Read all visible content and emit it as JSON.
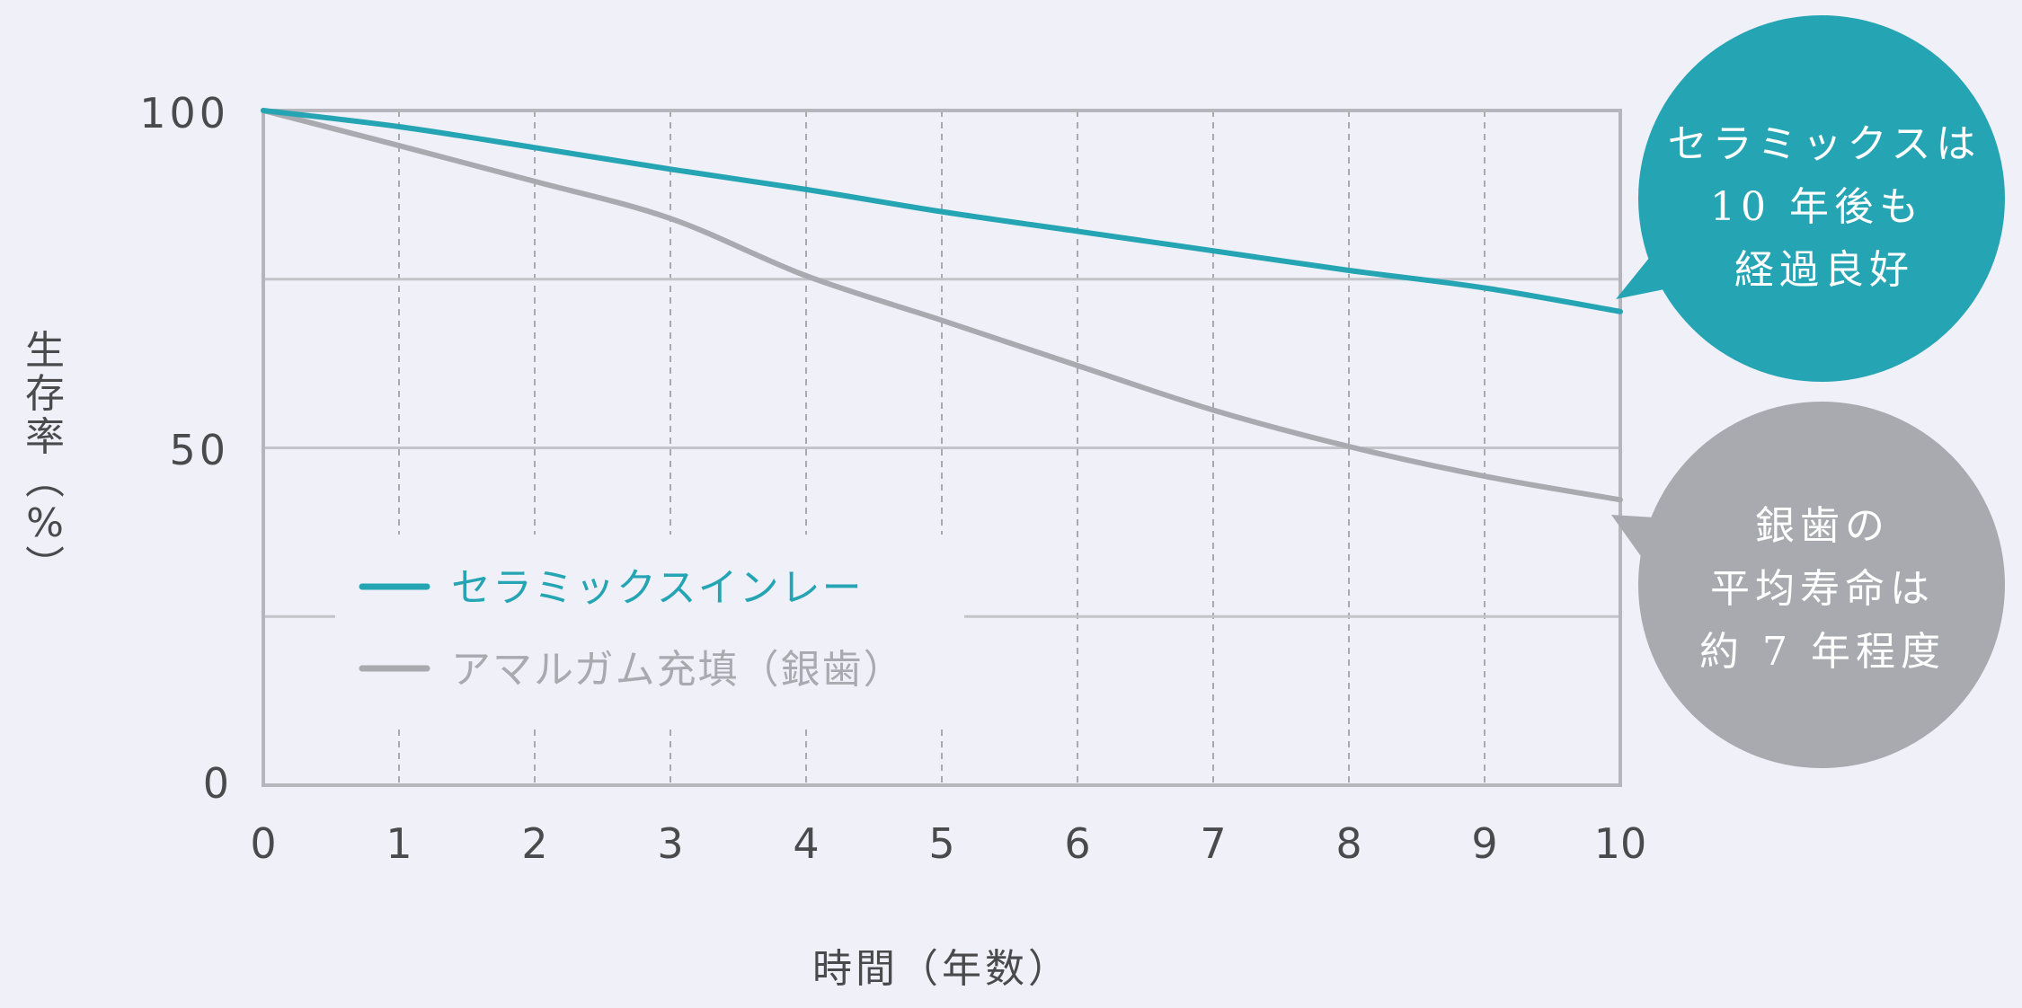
{
  "chart_data": {
    "type": "line",
    "title": "",
    "xlabel": "時間（年数）",
    "ylabel": "生存率（%）",
    "x": [
      0,
      1,
      2,
      3,
      4,
      5,
      6,
      7,
      8,
      9,
      10
    ],
    "xlim": [
      0,
      10
    ],
    "ylim": [
      0,
      100
    ],
    "x_ticks": [
      "0",
      "1",
      "2",
      "3",
      "4",
      "5",
      "6",
      "7",
      "8",
      "9",
      "10"
    ],
    "y_ticks": [
      "0",
      "50",
      "100"
    ],
    "y_gridlines": [
      25,
      50,
      75,
      100
    ],
    "x_gridlines_dashed": [
      1,
      2,
      3,
      4,
      5,
      6,
      7,
      8,
      9
    ],
    "grid": true,
    "legend_position": "lower-left inside plot",
    "series": [
      {
        "name": "セラミックスインレー",
        "color": "#25a5b3",
        "values": [
          100,
          97.6,
          94.5,
          91.3,
          88.3,
          85.0,
          82.1,
          79.2,
          76.3,
          73.7,
          70.2
        ]
      },
      {
        "name": "アマルガム充填（銀歯）",
        "color": "#a9aaaf",
        "values": [
          100,
          94.8,
          89.5,
          84.0,
          75.5,
          68.9,
          62.2,
          55.6,
          50.2,
          45.8,
          42.3
        ]
      }
    ],
    "annotations": [
      {
        "series": "セラミックスインレー",
        "shape": "speech-bubble",
        "color": "#25a5b3",
        "lines": [
          "セラミックスは",
          "10 年後も",
          "経過良好"
        ]
      },
      {
        "series": "アマルガム充填（銀歯）",
        "shape": "speech-bubble",
        "color": "#a9aaaf",
        "lines": [
          "銀歯の",
          "平均寿命は",
          "約 7 年程度"
        ]
      }
    ]
  },
  "labels": {
    "y_axis_chars": [
      "生",
      "存",
      "率",
      "︵",
      "%",
      "︶"
    ],
    "x_axis_title": "時間（年数）",
    "y_tick_100": "100",
    "y_tick_50": "50",
    "y_tick_0": "0",
    "x_ticks": [
      "0",
      "1",
      "2",
      "3",
      "4",
      "5",
      "6",
      "7",
      "8",
      "9",
      "10"
    ],
    "legend_ceramic": "セラミックスインレー",
    "legend_amalgam": "アマルガム充填（銀歯）",
    "bubble_ceramic": [
      "セラミックスは",
      "10 年後も",
      "経過良好"
    ],
    "bubble_amalgam": [
      "銀歯の",
      "平均寿命は",
      "約 7 年程度"
    ]
  },
  "colors": {
    "background": "#eff0f8",
    "ceramic": "#25a5b3",
    "amalgam": "#a9aaaf",
    "grid": "#c3c4c9",
    "axis": "#b5b6bb",
    "text": "#4a4a4c"
  }
}
